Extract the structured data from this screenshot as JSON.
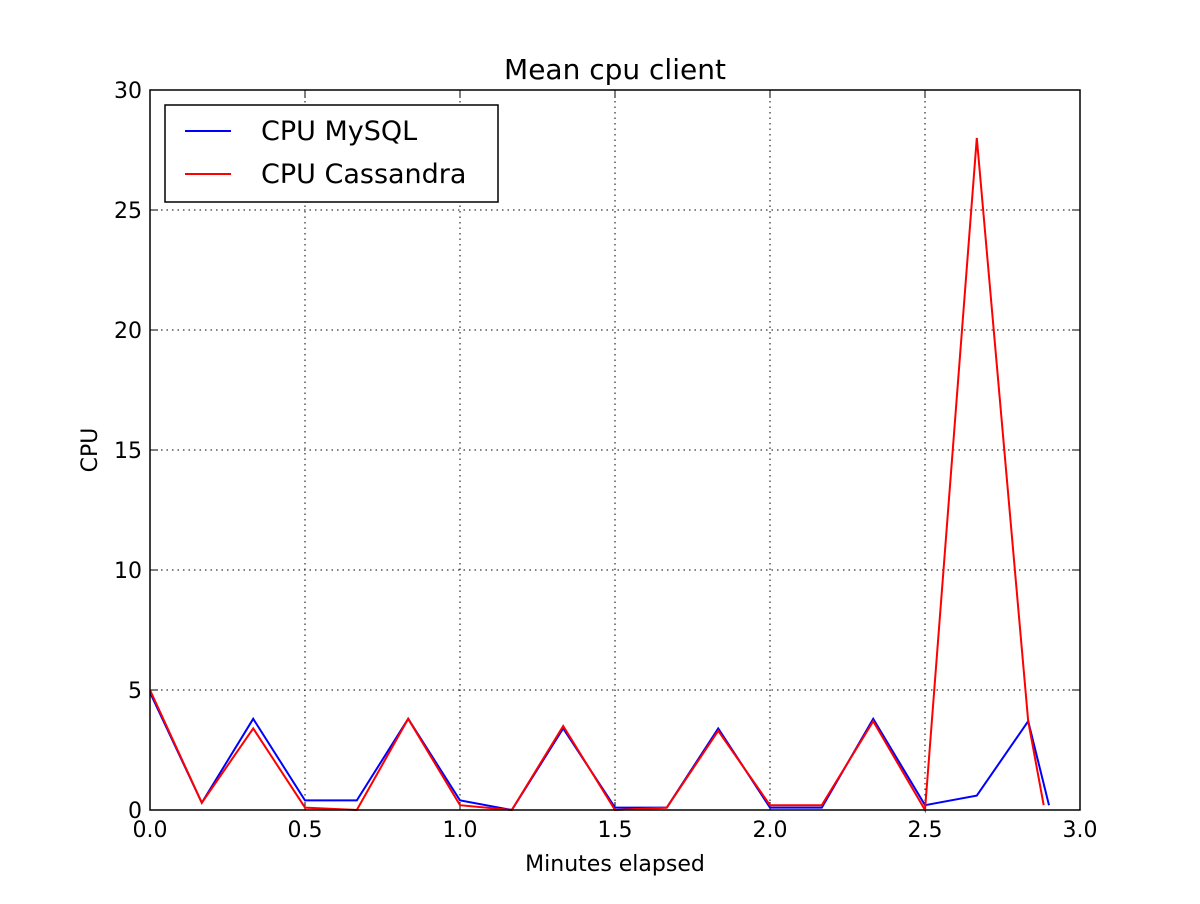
{
  "chart_data": {
    "type": "line",
    "title": "Mean cpu client",
    "xlabel": "Minutes elapsed",
    "ylabel": "CPU",
    "xlim": [
      0,
      3.0
    ],
    "ylim": [
      0,
      30
    ],
    "xticks": [
      "0.0",
      "0.5",
      "1.0",
      "1.5",
      "2.0",
      "2.5",
      "3.0"
    ],
    "yticks": [
      "0",
      "5",
      "10",
      "15",
      "20",
      "25",
      "30"
    ],
    "grid": true,
    "legend_position": "upper-left",
    "series": [
      {
        "name": "CPU MySQL",
        "color": "#0000ff",
        "x": [
          0.0,
          0.167,
          0.333,
          0.5,
          0.667,
          0.833,
          1.0,
          1.167,
          1.333,
          1.5,
          1.667,
          1.833,
          2.0,
          2.167,
          2.333,
          2.5,
          2.667,
          2.833,
          2.9
        ],
        "y": [
          4.9,
          0.3,
          3.8,
          0.4,
          0.4,
          3.8,
          0.4,
          0.0,
          3.4,
          0.1,
          0.1,
          3.4,
          0.1,
          0.1,
          3.8,
          0.2,
          0.6,
          3.7,
          0.2
        ]
      },
      {
        "name": "CPU Cassandra",
        "color": "#ff0000",
        "x": [
          0.0,
          0.167,
          0.333,
          0.5,
          0.667,
          0.833,
          1.0,
          1.167,
          1.333,
          1.5,
          1.667,
          1.833,
          2.0,
          2.167,
          2.333,
          2.5,
          2.667,
          2.833,
          2.883
        ],
        "y": [
          5.0,
          0.3,
          3.4,
          0.1,
          0.0,
          3.8,
          0.2,
          0.0,
          3.5,
          0.0,
          0.1,
          3.3,
          0.2,
          0.2,
          3.7,
          0.0,
          28.0,
          3.7,
          0.2
        ]
      }
    ]
  }
}
